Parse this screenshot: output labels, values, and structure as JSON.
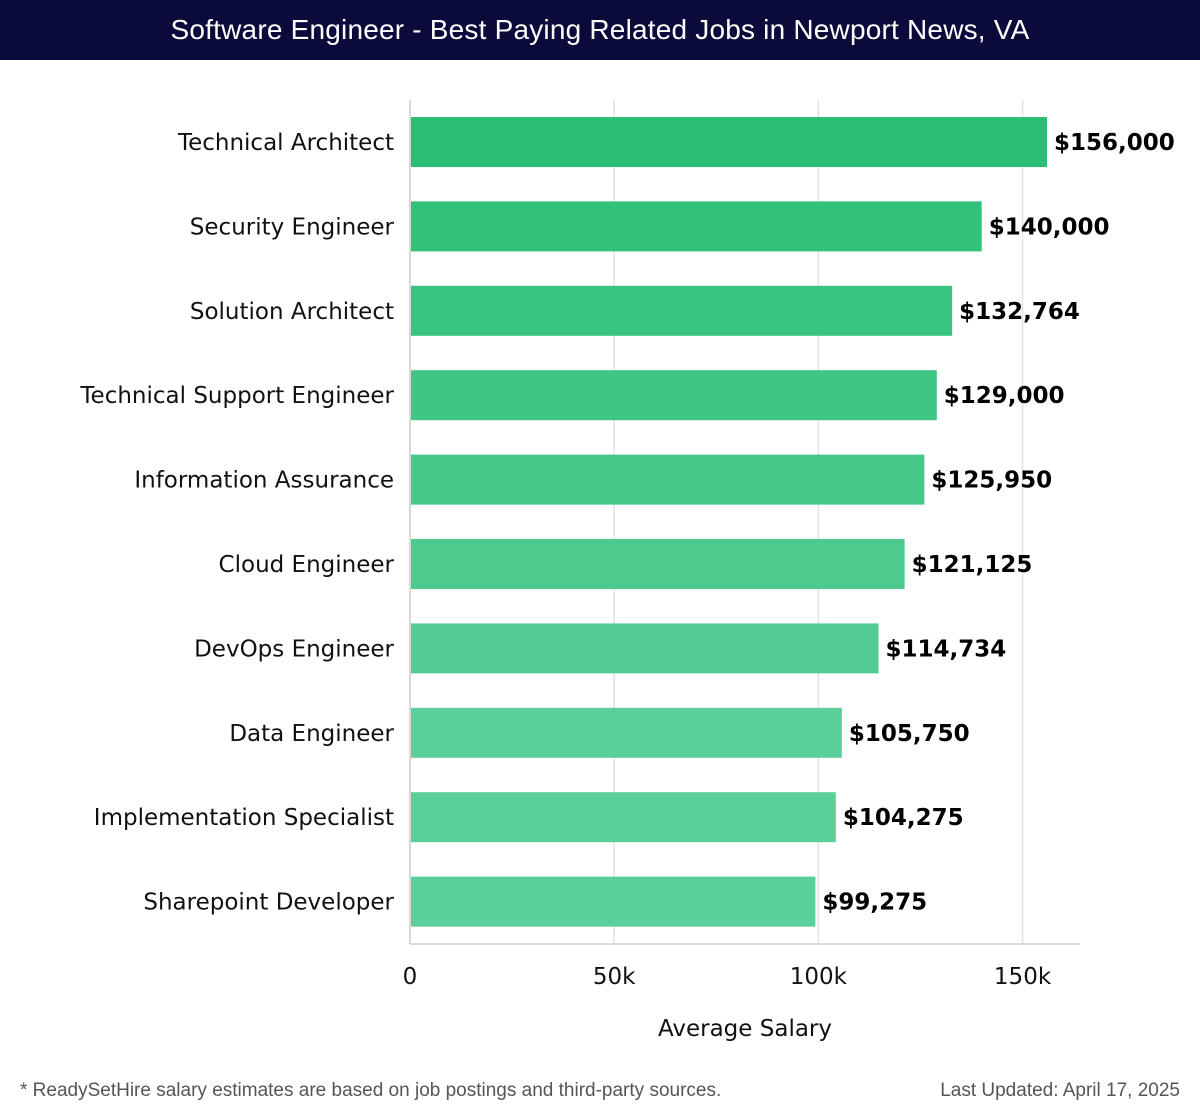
{
  "header": {
    "title": "Software Engineer - Best Paying Related Jobs in Newport News, VA"
  },
  "footer": {
    "note": "* ReadySetHire salary estimates are based on job postings and third-party sources.",
    "updated": "Last Updated: April 17, 2025"
  },
  "colors": {
    "header_bg": "#0b0b3b",
    "bar_top": "#2abf74",
    "bar_bottom": "#5bcf99",
    "grid": "#e2e2e2"
  },
  "chart_data": {
    "type": "bar",
    "orientation": "horizontal",
    "title": "Software Engineer - Best Paying Related Jobs in Newport News, VA",
    "xlabel": "Average Salary",
    "ylabel": "",
    "xlim": [
      0,
      165000
    ],
    "grid": true,
    "ticks": [
      {
        "value": 0,
        "label": "0"
      },
      {
        "value": 50000,
        "label": "50k"
      },
      {
        "value": 100000,
        "label": "100k"
      },
      {
        "value": 150000,
        "label": "150k"
      }
    ],
    "categories": [
      "Technical Architect",
      "Security Engineer",
      "Solution Architect",
      "Technical Support Engineer",
      "Information Assurance",
      "Cloud Engineer",
      "DevOps Engineer",
      "Data Engineer",
      "Implementation Specialist",
      "Sharepoint Developer"
    ],
    "values": [
      156000,
      140000,
      132764,
      129000,
      125950,
      121125,
      114734,
      105750,
      104275,
      99275
    ],
    "value_labels": [
      "$156,000",
      "$140,000",
      "$132,764",
      "$129,000",
      "$125,950",
      "$121,125",
      "$114,734",
      "$105,750",
      "$104,275",
      "$99,275"
    ]
  }
}
